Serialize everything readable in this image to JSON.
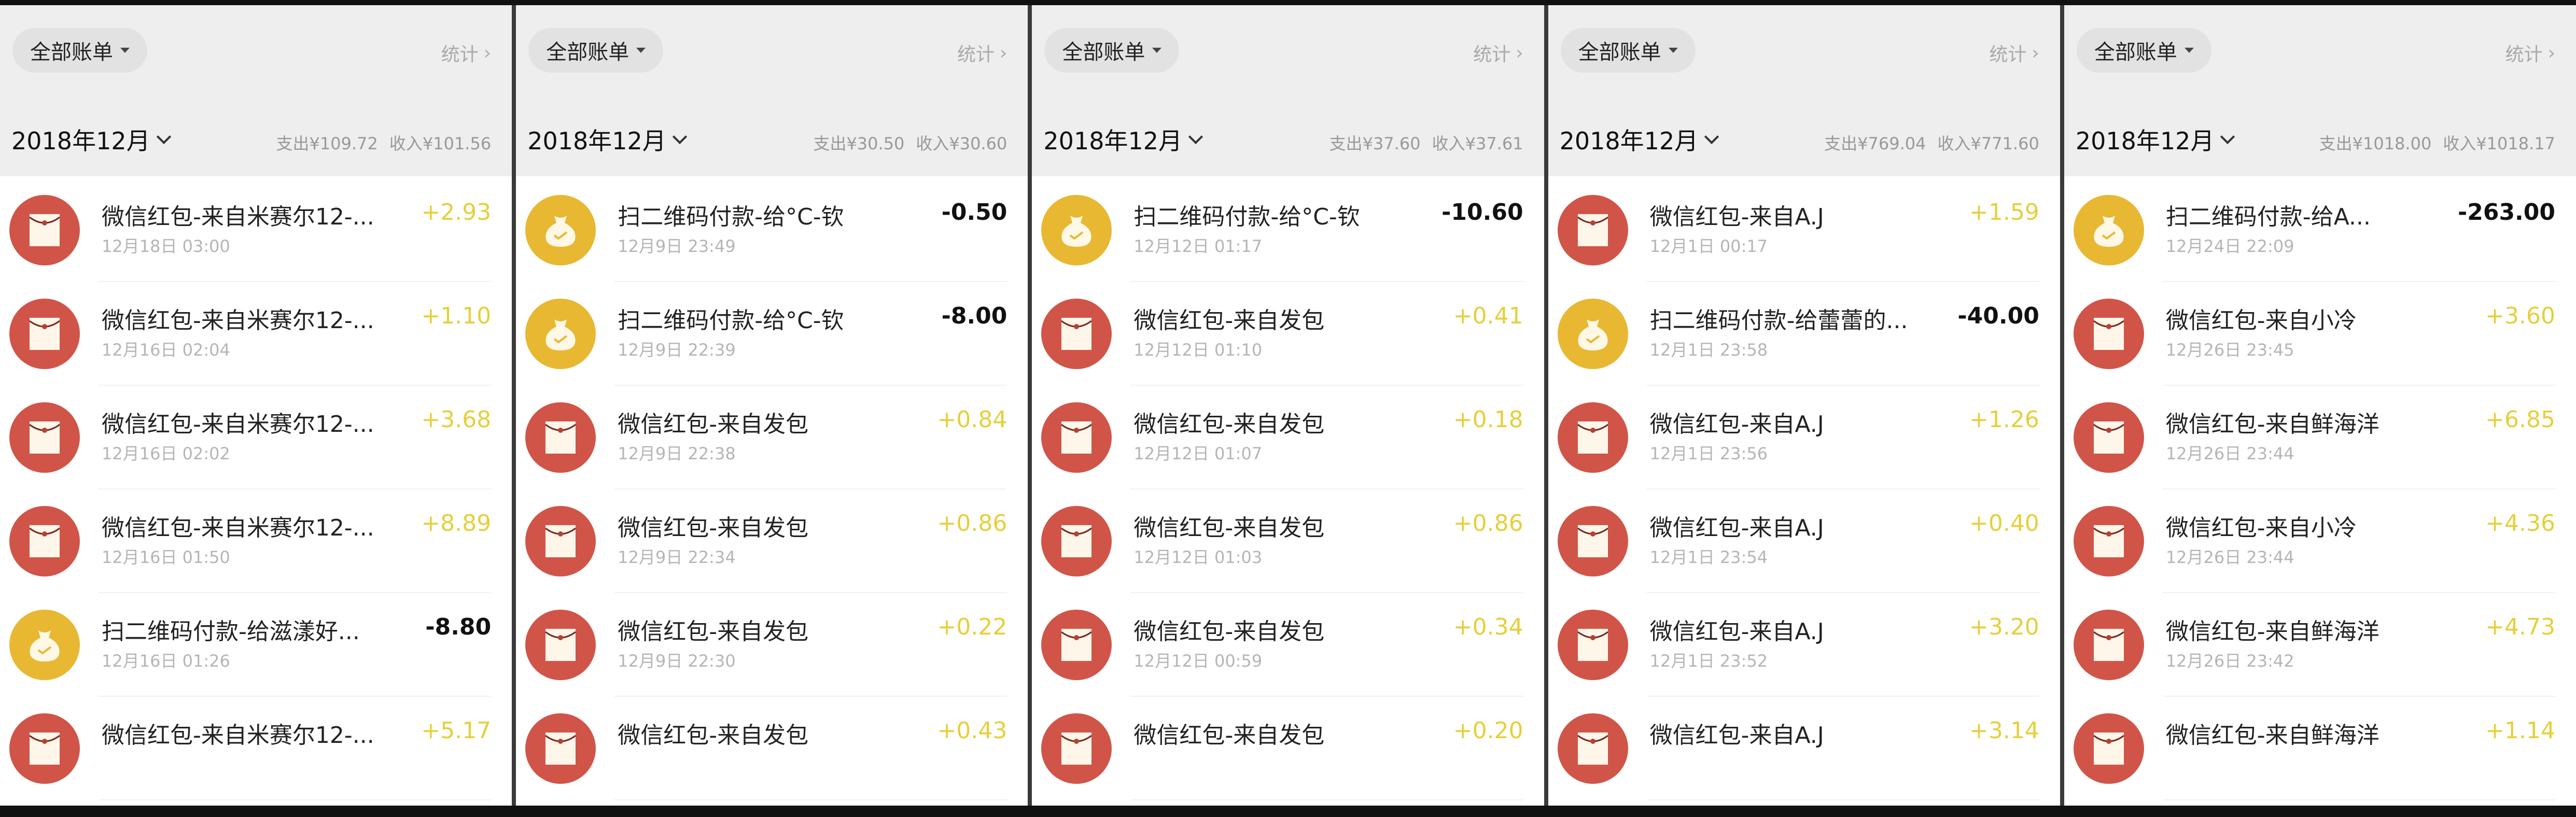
{
  "colors": {
    "income": "#e6cf3a",
    "expense": "#111111",
    "red_packet_icon": "#d05548",
    "qr_pay_icon": "#e8b833",
    "header_bg": "#eeeeee"
  },
  "panels": [
    {
      "filter_label": "全部账单",
      "stats_label": "统计",
      "month": "2018年12月",
      "expense": "支出¥109.72",
      "income": "收入¥101.56",
      "rows": [
        {
          "icon": "red-packet",
          "title": "微信红包-来自米赛尔12-...",
          "date": "12月18日 03:00",
          "amount": "+2.93",
          "kind": "in"
        },
        {
          "icon": "red-packet",
          "title": "微信红包-来自米赛尔12-...",
          "date": "12月16日 02:04",
          "amount": "+1.10",
          "kind": "in"
        },
        {
          "icon": "red-packet",
          "title": "微信红包-来自米赛尔12-...",
          "date": "12月16日 02:02",
          "amount": "+3.68",
          "kind": "in"
        },
        {
          "icon": "red-packet",
          "title": "微信红包-来自米赛尔12-...",
          "date": "12月16日 01:50",
          "amount": "+8.89",
          "kind": "in"
        },
        {
          "icon": "qr-pay",
          "title": "扫二维码付款-给滋漾好...",
          "date": "12月16日 01:26",
          "amount": "-8.80",
          "kind": "out"
        },
        {
          "icon": "red-packet",
          "title": "微信红包-来自米赛尔12-...",
          "date": "",
          "amount": "+5.17",
          "kind": "in"
        }
      ]
    },
    {
      "filter_label": "全部账单",
      "stats_label": "统计",
      "month": "2018年12月",
      "expense": "支出¥30.50",
      "income": "收入¥30.60",
      "rows": [
        {
          "icon": "qr-pay",
          "title": "扫二维码付款-给°C-钦",
          "date": "12月9日 23:49",
          "amount": "-0.50",
          "kind": "out"
        },
        {
          "icon": "qr-pay",
          "title": "扫二维码付款-给°C-钦",
          "date": "12月9日 22:39",
          "amount": "-8.00",
          "kind": "out"
        },
        {
          "icon": "red-packet",
          "title": "微信红包-来自发包",
          "date": "12月9日 22:38",
          "amount": "+0.84",
          "kind": "in"
        },
        {
          "icon": "red-packet",
          "title": "微信红包-来自发包",
          "date": "12月9日 22:34",
          "amount": "+0.86",
          "kind": "in"
        },
        {
          "icon": "red-packet",
          "title": "微信红包-来自发包",
          "date": "12月9日 22:30",
          "amount": "+0.22",
          "kind": "in"
        },
        {
          "icon": "red-packet",
          "title": "微信红包-来自发包",
          "date": "",
          "amount": "+0.43",
          "kind": "in"
        }
      ]
    },
    {
      "filter_label": "全部账单",
      "stats_label": "统计",
      "month": "2018年12月",
      "expense": "支出¥37.60",
      "income": "收入¥37.61",
      "rows": [
        {
          "icon": "qr-pay",
          "title": "扫二维码付款-给°C-钦",
          "date": "12月12日 01:17",
          "amount": "-10.60",
          "kind": "out"
        },
        {
          "icon": "red-packet",
          "title": "微信红包-来自发包",
          "date": "12月12日 01:10",
          "amount": "+0.41",
          "kind": "in"
        },
        {
          "icon": "red-packet",
          "title": "微信红包-来自发包",
          "date": "12月12日 01:07",
          "amount": "+0.18",
          "kind": "in"
        },
        {
          "icon": "red-packet",
          "title": "微信红包-来自发包",
          "date": "12月12日 01:03",
          "amount": "+0.86",
          "kind": "in"
        },
        {
          "icon": "red-packet",
          "title": "微信红包-来自发包",
          "date": "12月12日 00:59",
          "amount": "+0.34",
          "kind": "in"
        },
        {
          "icon": "red-packet",
          "title": "微信红包-来自发包",
          "date": "",
          "amount": "+0.20",
          "kind": "in"
        }
      ]
    },
    {
      "filter_label": "全部账单",
      "stats_label": "统计",
      "month": "2018年12月",
      "expense": "支出¥769.04",
      "income": "收入¥771.60",
      "rows": [
        {
          "icon": "red-packet",
          "title": "微信红包-来自A.J",
          "date": "12月1日 00:17",
          "amount": "+1.59",
          "kind": "in"
        },
        {
          "icon": "qr-pay",
          "title": "扫二维码付款-给蕾蕾的...",
          "date": "12月1日 23:58",
          "amount": "-40.00",
          "kind": "out"
        },
        {
          "icon": "red-packet",
          "title": "微信红包-来自A.J",
          "date": "12月1日 23:56",
          "amount": "+1.26",
          "kind": "in"
        },
        {
          "icon": "red-packet",
          "title": "微信红包-来自A.J",
          "date": "12月1日 23:54",
          "amount": "+0.40",
          "kind": "in"
        },
        {
          "icon": "red-packet",
          "title": "微信红包-来自A.J",
          "date": "12月1日 23:52",
          "amount": "+3.20",
          "kind": "in"
        },
        {
          "icon": "red-packet",
          "title": "微信红包-来自A.J",
          "date": "",
          "amount": "+3.14",
          "kind": "in"
        }
      ]
    },
    {
      "filter_label": "全部账单",
      "stats_label": "统计",
      "month": "2018年12月",
      "expense": "支出¥1018.00",
      "income": "收入¥1018.17",
      "rows": [
        {
          "icon": "qr-pay",
          "title": "扫二维码付款-给A...",
          "date": "12月24日 22:09",
          "amount": "-263.00",
          "kind": "out"
        },
        {
          "icon": "red-packet",
          "title": "微信红包-来自小冷",
          "date": "12月26日 23:45",
          "amount": "+3.60",
          "kind": "in"
        },
        {
          "icon": "red-packet",
          "title": "微信红包-来自鲜海洋",
          "date": "12月26日 23:44",
          "amount": "+6.85",
          "kind": "in"
        },
        {
          "icon": "red-packet",
          "title": "微信红包-来自小冷",
          "date": "12月26日 23:44",
          "amount": "+4.36",
          "kind": "in"
        },
        {
          "icon": "red-packet",
          "title": "微信红包-来自鲜海洋",
          "date": "12月26日 23:42",
          "amount": "+4.73",
          "kind": "in"
        },
        {
          "icon": "red-packet",
          "title": "微信红包-来自鲜海洋",
          "date": "",
          "amount": "+1.14",
          "kind": "in"
        }
      ]
    }
  ]
}
